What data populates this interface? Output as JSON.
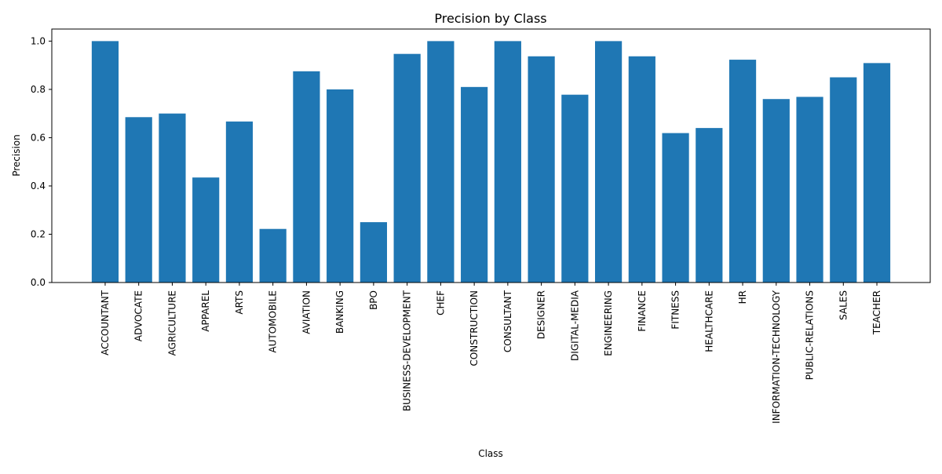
{
  "chart_data": {
    "type": "bar",
    "title": "Precision by Class",
    "xlabel": "Class",
    "ylabel": "Precision",
    "ylim": [
      0,
      1.05
    ],
    "yticks": [
      0.0,
      0.2,
      0.4,
      0.6,
      0.8,
      1.0
    ],
    "ytick_labels": [
      "0.0",
      "0.2",
      "0.4",
      "0.6",
      "0.8",
      "1.0"
    ],
    "grid": false,
    "legend": "none",
    "bar_color": "#1f77b4",
    "categories": [
      "ACCOUNTANT",
      "ADVOCATE",
      "AGRICULTURE",
      "APPAREL",
      "ARTS",
      "AUTOMOBILE",
      "AVIATION",
      "BANKING",
      "BPO",
      "BUSINESS-DEVELOPMENT",
      "CHEF",
      "CONSTRUCTION",
      "CONSULTANT",
      "DESIGNER",
      "DIGITAL-MEDIA",
      "ENGINEERING",
      "FINANCE",
      "FITNESS",
      "HEALTHCARE",
      "HR",
      "INFORMATION-TECHNOLOGY",
      "PUBLIC-RELATIONS",
      "SALES",
      "TEACHER"
    ],
    "values": [
      1.0,
      0.685,
      0.7,
      0.435,
      0.667,
      0.222,
      0.875,
      0.8,
      0.25,
      0.947,
      1.0,
      0.81,
      1.0,
      0.937,
      0.778,
      1.0,
      0.937,
      0.619,
      0.64,
      0.923,
      0.76,
      0.769,
      0.85,
      0.909
    ]
  }
}
